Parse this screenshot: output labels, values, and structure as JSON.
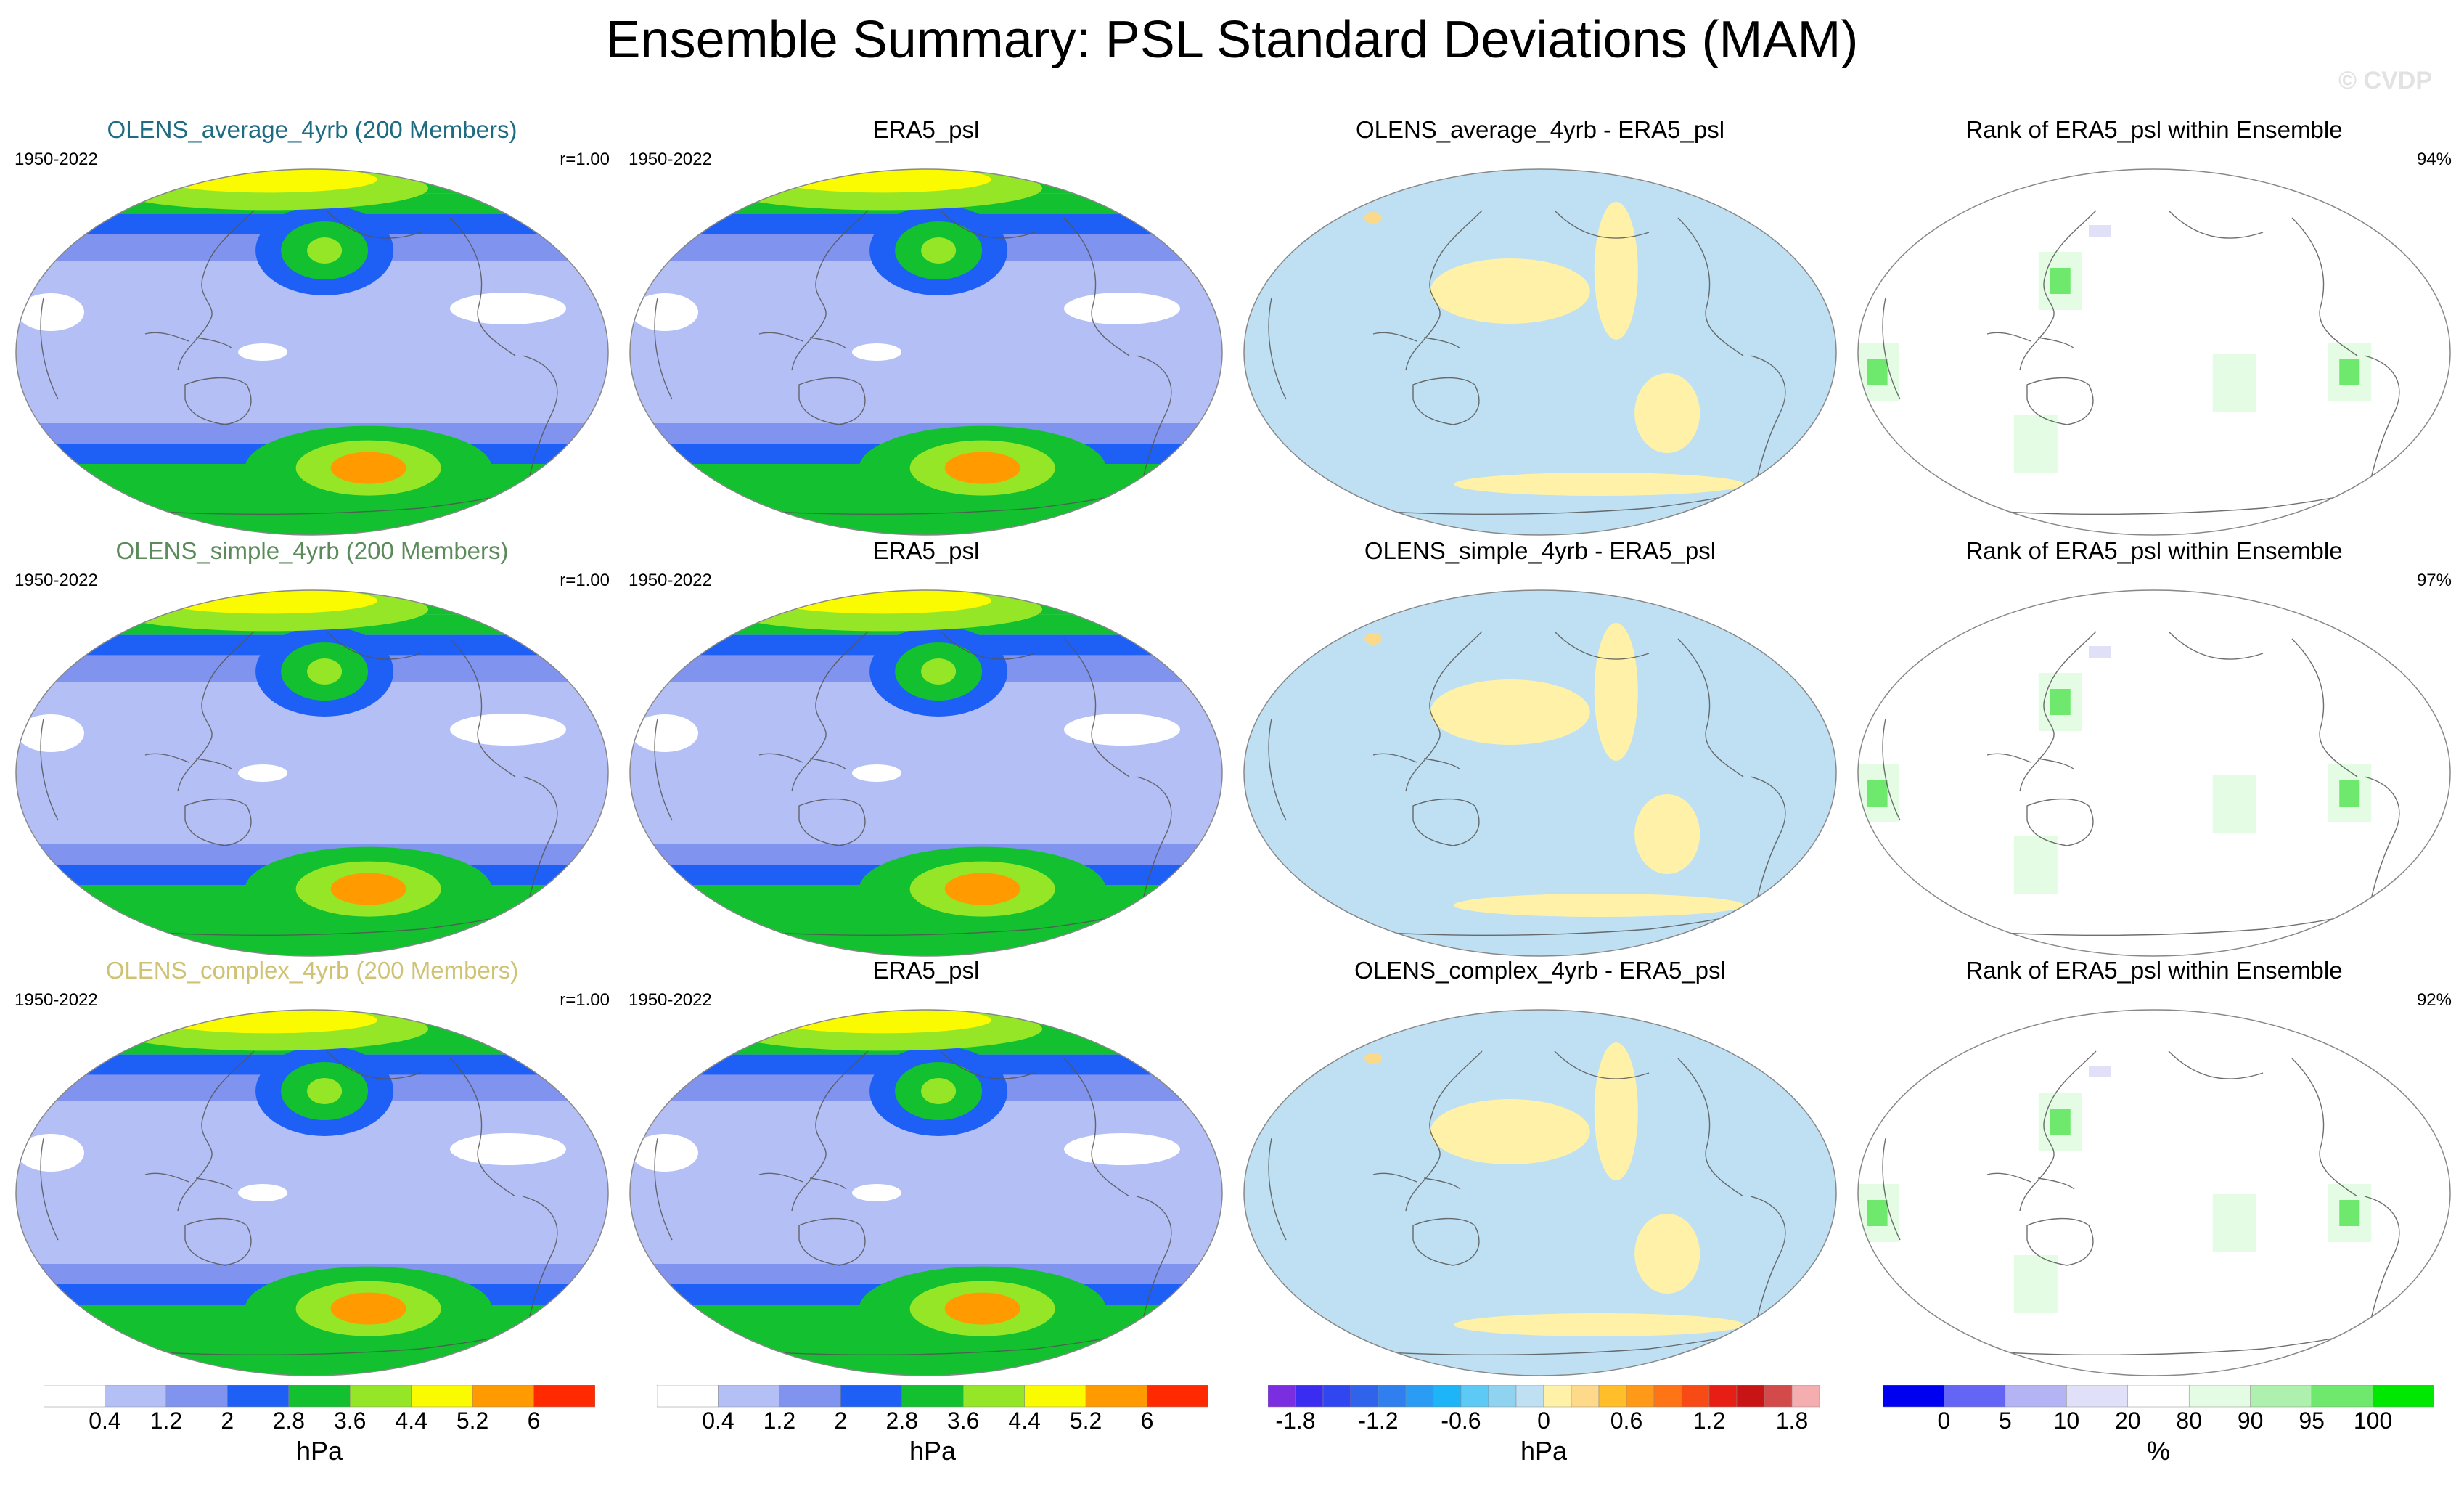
{
  "figure": {
    "title": "Ensemble Summary: PSL Standard Deviations (MAM)",
    "watermark": "© CVDP"
  },
  "rows": [
    {
      "ensemble": {
        "title": "OLENS_average_4yrb (200 Members)",
        "title_color": "#1f6b82",
        "years": "1950-2022",
        "corr": "r=1.00"
      },
      "obs": {
        "title": "ERA5_psl",
        "years": "1950-2022"
      },
      "diff": {
        "title": "OLENS_average_4yrb - ERA5_psl"
      },
      "rank": {
        "title": "Rank of ERA5_psl within Ensemble",
        "pct": "94%"
      }
    },
    {
      "ensemble": {
        "title": "OLENS_simple_4yrb (200 Members)",
        "title_color": "#5b8a5b",
        "years": "1950-2022",
        "corr": "r=1.00"
      },
      "obs": {
        "title": "ERA5_psl",
        "years": "1950-2022"
      },
      "diff": {
        "title": "OLENS_simple_4yrb - ERA5_psl"
      },
      "rank": {
        "title": "Rank of ERA5_psl within Ensemble",
        "pct": "97%"
      }
    },
    {
      "ensemble": {
        "title": "OLENS_complex_4yrb (200 Members)",
        "title_color": "#cfc273",
        "years": "1950-2022",
        "corr": "r=1.00"
      },
      "obs": {
        "title": "ERA5_psl",
        "years": "1950-2022"
      },
      "diff": {
        "title": "OLENS_complex_4yrb - ERA5_psl"
      },
      "rank": {
        "title": "Rank of ERA5_psl within Ensemble",
        "pct": "92%"
      }
    }
  ],
  "chart_data": [
    {
      "type": "heatmap",
      "name": "ensemble_and_obs_stddev",
      "unit": "hPa",
      "levels": [
        0.4,
        1.2,
        2,
        2.8,
        3.6,
        4.4,
        5.2,
        6
      ],
      "tick_labels": [
        "0.4",
        "1.2",
        "2",
        "2.8",
        "3.6",
        "4.4",
        "5.2",
        "6"
      ],
      "colors": [
        "#ffffff",
        "#b4c0f5",
        "#7f93ef",
        "#1e5ff5",
        "#12c030",
        "#96e628",
        "#fafa00",
        "#ff9a00",
        "#ff2a00"
      ],
      "pattern_rows": [
        {
          "row": 1,
          "regions": [
            {
              "name": "north-pacific-max",
              "lat": 50,
              "lon": 190,
              "value": 3.9
            },
            {
              "name": "arctic-max",
              "lat": 82,
              "lon": 180,
              "value": 5.0
            },
            {
              "name": "southern-ocean-max",
              "lat": -57,
              "lon": 230,
              "value": 5.5
            },
            {
              "name": "tropics-min",
              "lat": 0,
              "lon": 150,
              "value": 0.6
            }
          ]
        },
        {
          "row": 2,
          "regions": [
            {
              "name": "north-pacific-max",
              "lat": 50,
              "lon": 190,
              "value": 3.9
            },
            {
              "name": "arctic-max",
              "lat": 82,
              "lon": 180,
              "value": 5.0
            },
            {
              "name": "southern-ocean-max",
              "lat": -57,
              "lon": 230,
              "value": 5.5
            },
            {
              "name": "tropics-min",
              "lat": 0,
              "lon": 150,
              "value": 0.6
            }
          ]
        },
        {
          "row": 3,
          "regions": [
            {
              "name": "north-pacific-max",
              "lat": 50,
              "lon": 190,
              "value": 3.9
            },
            {
              "name": "arctic-max",
              "lat": 82,
              "lon": 180,
              "value": 5.0
            },
            {
              "name": "southern-ocean-max",
              "lat": -57,
              "lon": 230,
              "value": 5.5
            },
            {
              "name": "tropics-min",
              "lat": 0,
              "lon": 150,
              "value": 0.6
            }
          ]
        }
      ]
    },
    {
      "type": "heatmap",
      "name": "ensemble_minus_obs",
      "unit": "hPa",
      "levels": [
        -1.8,
        -1.6,
        -1.4,
        -1.2,
        -1.0,
        -0.8,
        -0.6,
        -0.4,
        -0.2,
        0,
        0.2,
        0.4,
        0.6,
        0.8,
        1.0,
        1.2,
        1.4,
        1.6,
        1.8
      ],
      "tick_labels": [
        "-1.8",
        "-1.2",
        "-0.6",
        "0",
        "0.6",
        "1.2",
        "1.8"
      ],
      "tick_values": [
        -1.8,
        -1.2,
        -0.6,
        0,
        0.6,
        1.2,
        1.8
      ],
      "colors": [
        "#7a2ee0",
        "#3a2cf0",
        "#2f46f0",
        "#2f63ec",
        "#2f80ee",
        "#2a9cf3",
        "#1eb4f8",
        "#5ccaf5",
        "#8fd3f0",
        "#bfe0f3",
        "#fff2a8",
        "#ffd98a",
        "#ffbe2a",
        "#ff9a18",
        "#ff7414",
        "#f84a14",
        "#e61e14",
        "#c81414",
        "#d24a4a",
        "#f5aeb0"
      ],
      "general_value": -0.1,
      "positive_regions": [
        {
          "name": "north-pacific",
          "lat": 30,
          "lon": 160,
          "value": 0.2
        },
        {
          "name": "west-north-america-coast",
          "lat": 40,
          "lon": 235,
          "value": 0.2
        },
        {
          "name": "south-east-pacific",
          "lat": -30,
          "lon": 265,
          "value": 0.2
        },
        {
          "name": "antarctic-coast",
          "lat": -65,
          "lon": 240,
          "value": 0.2
        }
      ]
    },
    {
      "type": "heatmap",
      "name": "obs_rank_in_ensemble",
      "unit": "%",
      "levels": [
        0,
        5,
        10,
        20,
        80,
        90,
        95,
        100
      ],
      "tick_labels": [
        "0",
        "5",
        "10",
        "20",
        "80",
        "90",
        "95",
        "100"
      ],
      "colors": [
        "#0000f0",
        "#6464f5",
        "#b4b4f5",
        "#e0e0f8",
        "#ffffff",
        "#e4fbe4",
        "#aef0ae",
        "#6ee96e",
        "#00e800"
      ],
      "percent_summary": [
        94,
        97,
        92
      ],
      "hot_spots": [
        {
          "name": "east-asia",
          "lat": 35,
          "lon": 115,
          "rank": 98
        },
        {
          "name": "amazon",
          "lat": -10,
          "lon": 300,
          "rank": 96
        },
        {
          "name": "south-atlantic-africa",
          "lat": -10,
          "lon": 10,
          "rank": 97
        },
        {
          "name": "tropical-south-pacific",
          "lat": -15,
          "lon": 230,
          "rank": 85
        },
        {
          "name": "southern-ocean-indian",
          "lat": -45,
          "lon": 90,
          "rank": 85
        }
      ]
    }
  ]
}
